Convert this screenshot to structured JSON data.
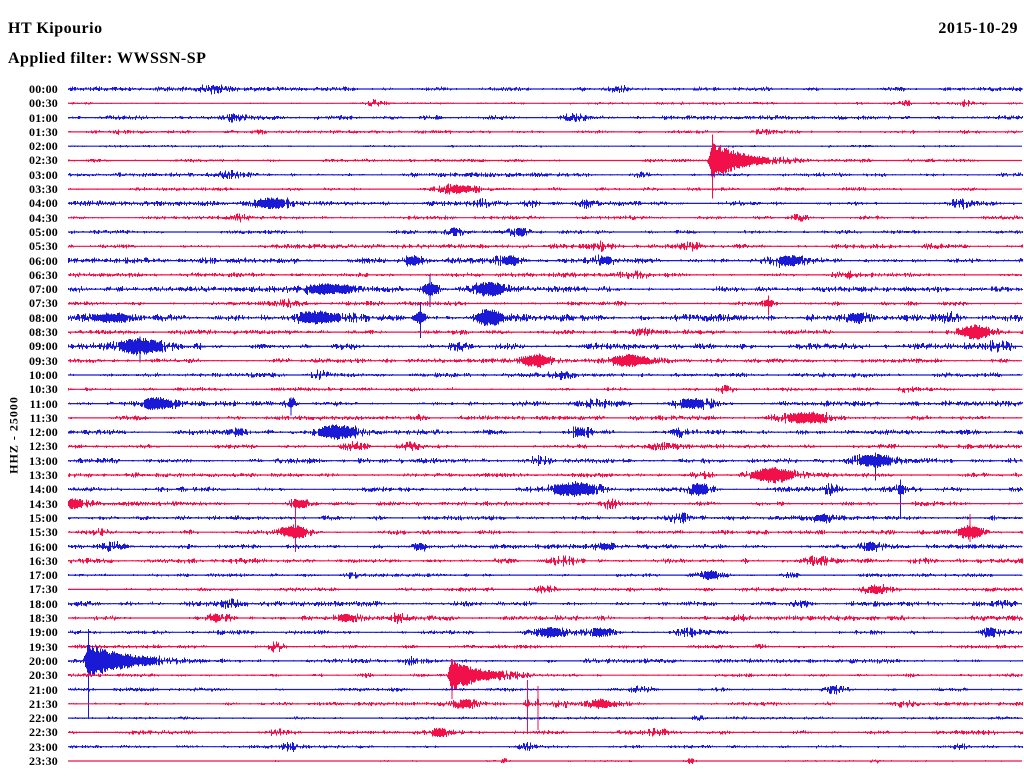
{
  "header": {
    "station": "HT Kipourio",
    "filter_label": "Applied filter: WWSSN-SP",
    "date": "2015-10-29"
  },
  "y_axis_label": "HHZ - 25000",
  "colors": {
    "background": "#ffffff",
    "text": "#000000",
    "trace_blue": "#1a1ad6",
    "trace_red": "#f1104a"
  },
  "chart_data": {
    "type": "helicorder",
    "title": "HT Kipourio 2015-10-29 HHZ helicorder, WWSSN-SP filter, scale 25000",
    "row_interval_minutes": 30,
    "start_time": "00:00",
    "end_time": "23:30",
    "legend": "blue/red alternating half-hour traces",
    "rows": [
      {
        "t": "00:00",
        "c": "b",
        "n": 1.4,
        "b": [
          [
            0.149,
            2.5,
            10
          ],
          [
            0.579,
            2,
            8
          ]
        ]
      },
      {
        "t": "00:30",
        "c": "r",
        "n": 0.9,
        "b": [
          [
            0.322,
            2.5,
            8
          ],
          [
            0.877,
            2,
            5
          ],
          [
            0.94,
            2,
            5
          ]
        ]
      },
      {
        "t": "01:00",
        "c": "b",
        "n": 1.4,
        "b": [
          [
            0.17,
            2.5,
            10
          ],
          [
            0.531,
            2,
            8
          ]
        ]
      },
      {
        "t": "01:30",
        "c": "r",
        "n": 1.1,
        "b": [
          [
            0.055,
            2,
            6
          ],
          [
            0.2,
            2,
            5
          ],
          [
            0.727,
            2,
            6
          ]
        ]
      },
      {
        "t": "02:00",
        "c": "b",
        "n": 0.7,
        "b": []
      },
      {
        "t": "02:30",
        "c": "r",
        "n": 1.0,
        "b": [
          [
            0.675,
            20,
            2,
            30,
            26,
            38
          ]
        ]
      },
      {
        "t": "03:00",
        "c": "b",
        "n": 1.4,
        "b": [
          [
            0.17,
            2.5,
            8
          ],
          [
            0.6,
            2,
            6
          ]
        ]
      },
      {
        "t": "03:30",
        "c": "r",
        "n": 1.1,
        "b": [
          [
            0.411,
            3.5,
            18
          ]
        ]
      },
      {
        "t": "04:00",
        "c": "b",
        "n": 1.6,
        "b": [
          [
            0.212,
            5,
            14
          ],
          [
            0.435,
            2.5,
            6
          ],
          [
            0.484,
            3,
            6
          ],
          [
            0.544,
            2.5,
            5
          ],
          [
            0.935,
            2.5,
            8
          ]
        ]
      },
      {
        "t": "04:30",
        "c": "r",
        "n": 1.2,
        "b": [
          [
            0.18,
            2.5,
            8
          ],
          [
            0.767,
            2.5,
            8
          ]
        ]
      },
      {
        "t": "05:00",
        "c": "b",
        "n": 1.2,
        "b": [
          [
            0.406,
            2,
            6
          ],
          [
            0.474,
            3.5,
            8
          ]
        ]
      },
      {
        "t": "05:30",
        "c": "r",
        "n": 1.4,
        "b": [
          [
            0.558,
            2.5,
            8
          ],
          [
            0.652,
            2.5,
            8
          ],
          [
            0.903,
            2,
            6
          ]
        ]
      },
      {
        "t": "06:00",
        "c": "b",
        "n": 1.8,
        "b": [
          [
            0.362,
            4,
            8
          ],
          [
            0.463,
            4,
            10
          ],
          [
            0.563,
            3.5,
            10
          ],
          [
            0.757,
            4.5,
            12
          ]
        ]
      },
      {
        "t": "06:30",
        "c": "r",
        "n": 1.4,
        "b": [
          [
            0.596,
            3,
            10
          ],
          [
            0.814,
            2.5,
            8
          ]
        ]
      },
      {
        "t": "07:00",
        "c": "b",
        "n": 1.8,
        "b": [
          [
            0.275,
            5,
            22
          ],
          [
            0.379,
            6,
            7,
            0,
            14,
            18
          ],
          [
            0.442,
            6.5,
            10
          ]
        ]
      },
      {
        "t": "07:30",
        "c": "r",
        "n": 1.4,
        "b": [
          [
            0.233,
            3,
            10
          ],
          [
            0.734,
            4,
            5,
            0,
            8,
            12
          ]
        ]
      },
      {
        "t": "08:00",
        "c": "b",
        "n": 2.2,
        "b": [
          [
            0.044,
            4.5,
            20
          ],
          [
            0.264,
            5,
            20
          ],
          [
            0.369,
            7,
            4,
            0,
            16,
            20
          ],
          [
            0.442,
            8,
            10
          ],
          [
            0.825,
            4,
            10
          ],
          [
            0.924,
            3,
            8
          ]
        ]
      },
      {
        "t": "08:30",
        "c": "r",
        "n": 1.5,
        "b": [
          [
            0.6,
            2.5,
            8
          ],
          [
            0.951,
            6,
            12
          ]
        ]
      },
      {
        "t": "09:00",
        "c": "b",
        "n": 2.0,
        "b": [
          [
            0.075,
            7,
            16,
            0,
            10,
            16
          ],
          [
            0.411,
            3,
            8
          ],
          [
            0.977,
            3,
            10
          ]
        ]
      },
      {
        "t": "09:30",
        "c": "r",
        "n": 1.4,
        "b": [
          [
            0.49,
            6,
            12
          ],
          [
            0.591,
            6,
            14
          ]
        ]
      },
      {
        "t": "10:00",
        "c": "b",
        "n": 1.4,
        "b": [
          [
            0.264,
            2.5,
            6
          ],
          [
            0.521,
            2.5,
            10
          ]
        ]
      },
      {
        "t": "10:30",
        "c": "r",
        "n": 1.2,
        "b": [
          [
            0.689,
            2.5,
            6
          ],
          [
            0.877,
            2,
            6
          ]
        ]
      },
      {
        "t": "11:00",
        "c": "b",
        "n": 1.7,
        "b": [
          [
            0.094,
            6,
            12
          ],
          [
            0.233,
            4,
            3,
            0,
            6,
            12
          ],
          [
            0.552,
            3,
            10
          ],
          [
            0.654,
            4,
            14
          ]
        ]
      },
      {
        "t": "11:30",
        "c": "r",
        "n": 1.4,
        "b": [
          [
            0.369,
            2,
            6
          ],
          [
            0.773,
            5,
            18
          ]
        ]
      },
      {
        "t": "12:00",
        "c": "b",
        "n": 1.6,
        "b": [
          [
            0.18,
            3.5,
            5
          ],
          [
            0.281,
            6,
            16
          ],
          [
            0.537,
            3.5,
            8
          ],
          [
            0.641,
            2.5,
            6
          ]
        ]
      },
      {
        "t": "12:30",
        "c": "r",
        "n": 1.4,
        "b": [
          [
            0.298,
            3,
            8
          ],
          [
            0.356,
            3,
            6
          ],
          [
            0.62,
            2.5,
            12
          ]
        ]
      },
      {
        "t": "13:00",
        "c": "b",
        "n": 1.6,
        "b": [
          [
            0.495,
            3,
            8
          ],
          [
            0.846,
            5.5,
            14,
            0,
            8,
            20
          ]
        ]
      },
      {
        "t": "13:30",
        "c": "r",
        "n": 1.4,
        "b": [
          [
            0.662,
            3,
            8
          ],
          [
            0.738,
            7,
            16
          ]
        ]
      },
      {
        "t": "14:00",
        "c": "b",
        "n": 1.6,
        "b": [
          [
            0.531,
            6.5,
            16
          ],
          [
            0.662,
            5,
            8
          ],
          [
            0.799,
            3,
            6
          ],
          [
            0.872,
            4,
            3,
            0,
            10,
            28
          ]
        ]
      },
      {
        "t": "14:30",
        "c": "r",
        "n": 1.4,
        "b": [
          [
            0.007,
            4,
            10
          ],
          [
            0.243,
            5,
            7
          ],
          [
            0.568,
            3,
            8
          ]
        ]
      },
      {
        "t": "15:00",
        "c": "b",
        "n": 1.4,
        "b": [
          [
            0.641,
            3,
            8
          ],
          [
            0.788,
            3.5,
            10
          ]
        ]
      },
      {
        "t": "15:30",
        "c": "r",
        "n": 1.4,
        "b": [
          [
            0.034,
            3,
            8
          ],
          [
            0.238,
            7,
            9,
            0,
            30,
            20
          ],
          [
            0.945,
            6.5,
            10,
            0,
            18,
            10
          ]
        ]
      },
      {
        "t": "16:00",
        "c": "b",
        "n": 1.4,
        "b": [
          [
            0.049,
            3,
            8
          ],
          [
            0.369,
            3.5,
            6
          ],
          [
            0.563,
            3.5,
            8
          ],
          [
            0.841,
            3.5,
            8
          ]
        ]
      },
      {
        "t": "16:30",
        "c": "r",
        "n": 1.7,
        "b": [
          [
            0.516,
            3,
            10
          ],
          [
            0.788,
            3,
            12
          ]
        ]
      },
      {
        "t": "17:00",
        "c": "b",
        "n": 1.1,
        "b": [
          [
            0.296,
            2,
            5
          ],
          [
            0.673,
            4,
            8
          ],
          [
            0.757,
            2.5,
            6
          ]
        ]
      },
      {
        "t": "17:30",
        "c": "r",
        "n": 1.2,
        "b": [
          [
            0.5,
            2.5,
            8
          ],
          [
            0.846,
            3.5,
            10
          ]
        ]
      },
      {
        "t": "18:00",
        "c": "b",
        "n": 1.6,
        "b": [
          [
            0.17,
            2.5,
            12
          ],
          [
            0.767,
            3,
            8
          ],
          [
            0.982,
            2.5,
            6
          ]
        ]
      },
      {
        "t": "18:30",
        "c": "r",
        "n": 1.6,
        "b": [
          [
            0.154,
            3.5,
            8
          ],
          [
            0.29,
            4,
            10
          ],
          [
            0.348,
            3,
            6
          ],
          [
            0.704,
            2.5,
            8
          ]
        ]
      },
      {
        "t": "19:00",
        "c": "b",
        "n": 1.4,
        "b": [
          [
            0.505,
            4,
            14
          ],
          [
            0.558,
            4,
            10
          ],
          [
            0.652,
            3,
            8
          ],
          [
            0.966,
            3.5,
            8
          ]
        ]
      },
      {
        "t": "19:30",
        "c": "r",
        "n": 1.1,
        "b": [
          [
            0.217,
            3,
            6
          ],
          [
            0.725,
            2,
            6
          ]
        ]
      },
      {
        "t": "20:00",
        "c": "b",
        "n": 1.4,
        "b": [
          [
            0.021,
            18,
            2,
            38,
            32,
            58
          ],
          [
            0.358,
            2,
            6
          ]
        ]
      },
      {
        "t": "20:30",
        "c": "r",
        "n": 1.2,
        "b": [
          [
            0.311,
            2,
            5
          ],
          [
            0.402,
            16,
            2,
            28,
            4,
            24
          ]
        ]
      },
      {
        "t": "21:00",
        "c": "b",
        "n": 1.2,
        "b": [
          [
            0.6,
            2,
            8
          ],
          [
            0.804,
            3,
            8
          ]
        ]
      },
      {
        "t": "21:30",
        "c": "r",
        "n": 1.2,
        "b": [
          [
            0.416,
            3.5,
            10
          ],
          [
            0.481,
            3,
            1.5,
            0,
            24,
            30
          ],
          [
            0.492,
            3,
            1.5,
            0,
            18,
            26
          ],
          [
            0.516,
            3,
            8
          ],
          [
            0.558,
            4,
            12
          ],
          [
            0.877,
            2.5,
            8
          ]
        ]
      },
      {
        "t": "22:00",
        "c": "b",
        "n": 0.9,
        "b": [
          [
            0.662,
            2,
            5
          ]
        ]
      },
      {
        "t": "22:30",
        "c": "r",
        "n": 1.4,
        "b": [
          [
            0.222,
            2.5,
            10
          ],
          [
            0.39,
            3.5,
            10
          ],
          [
            0.62,
            3,
            8
          ]
        ]
      },
      {
        "t": "23:00",
        "c": "b",
        "n": 1.0,
        "b": [
          [
            0.233,
            3,
            6
          ],
          [
            0.479,
            3,
            5
          ],
          [
            0.935,
            2.5,
            6
          ]
        ]
      },
      {
        "t": "23:30",
        "c": "r",
        "n": 0.5,
        "b": [
          [
            0.458,
            2,
            3
          ],
          [
            0.652,
            2.5,
            3
          ],
          [
            0.846,
            1.5,
            3
          ]
        ]
      }
    ]
  }
}
